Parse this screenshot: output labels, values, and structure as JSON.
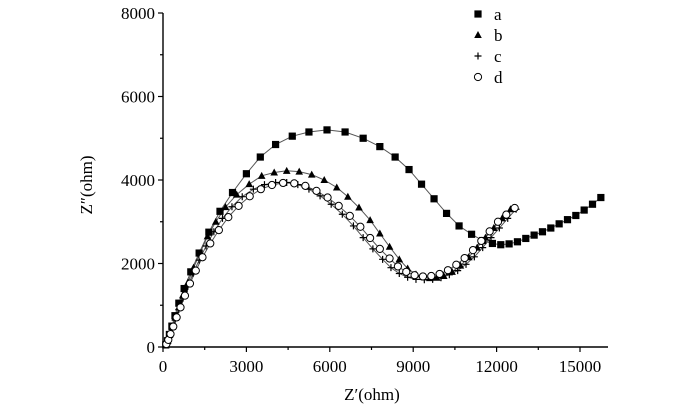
{
  "chart_data": {
    "type": "scatter",
    "title": "",
    "xlabel": "Z′(ohm)",
    "ylabel": "Z″(ohm)",
    "xlim": [
      0,
      17000
    ],
    "ylim": [
      0,
      8000
    ],
    "xticks": [
      0,
      3000,
      6000,
      9000,
      12000,
      15000
    ],
    "yticks": [
      0,
      2000,
      4000,
      6000,
      8000
    ],
    "legend": "top-right",
    "grid": false,
    "series": [
      {
        "name": "a",
        "marker": "square",
        "color": "#000000",
        "x": [
          100,
          160,
          230,
          320,
          430,
          570,
          760,
          1000,
          1300,
          1650,
          2050,
          2500,
          3000,
          3500,
          4050,
          4650,
          5250,
          5900,
          6550,
          7200,
          7800,
          8350,
          8850,
          9300,
          9750,
          10200,
          10650,
          11100,
          11500,
          11850,
          12150,
          12450,
          12750,
          13050,
          13350,
          13650,
          13950,
          14250,
          14550,
          14850,
          15150,
          15450,
          15750
        ],
        "y": [
          50,
          150,
          300,
          500,
          750,
          1050,
          1400,
          1800,
          2250,
          2750,
          3250,
          3700,
          4150,
          4550,
          4850,
          5050,
          5150,
          5200,
          5150,
          5000,
          4800,
          4550,
          4250,
          3900,
          3550,
          3200,
          2900,
          2700,
          2550,
          2480,
          2450,
          2470,
          2520,
          2600,
          2680,
          2760,
          2850,
          2950,
          3050,
          3150,
          3280,
          3420,
          3580
        ]
      },
      {
        "name": "b",
        "marker": "triangle",
        "color": "#000000",
        "x": [
          110,
          170,
          240,
          330,
          440,
          570,
          720,
          900,
          1100,
          1330,
          1600,
          1900,
          2250,
          2650,
          3100,
          3550,
          4000,
          4450,
          4900,
          5350,
          5800,
          6250,
          6650,
          7050,
          7450,
          7800,
          8150,
          8500,
          8800,
          9100,
          9350,
          9600,
          9850,
          10100,
          10400,
          10700,
          11000,
          11300,
          11600,
          11900,
          12200,
          12500
        ],
        "y": [
          60,
          150,
          300,
          480,
          700,
          950,
          1250,
          1550,
          1900,
          2250,
          2650,
          3000,
          3350,
          3650,
          3900,
          4100,
          4180,
          4220,
          4200,
          4130,
          4000,
          3820,
          3600,
          3340,
          3040,
          2720,
          2400,
          2100,
          1880,
          1740,
          1680,
          1650,
          1660,
          1700,
          1800,
          1950,
          2150,
          2380,
          2620,
          2850,
          3080,
          3300
        ]
      },
      {
        "name": "c",
        "marker": "plus",
        "color": "#000000",
        "x": [
          110,
          170,
          240,
          330,
          440,
          570,
          720,
          890,
          1080,
          1300,
          1550,
          1830,
          2140,
          2480,
          2850,
          3250,
          3650,
          4050,
          4450,
          4850,
          5250,
          5650,
          6050,
          6450,
          6850,
          7200,
          7550,
          7900,
          8200,
          8500,
          8800,
          9100,
          9400,
          9700,
          10000,
          10300,
          10600,
          10900,
          11200,
          11500,
          11800,
          12100,
          12400,
          12700
        ],
        "y": [
          60,
          150,
          290,
          460,
          670,
          900,
          1170,
          1450,
          1760,
          2080,
          2420,
          2760,
          3080,
          3360,
          3600,
          3780,
          3890,
          3940,
          3940,
          3890,
          3780,
          3620,
          3420,
          3180,
          2900,
          2620,
          2350,
          2100,
          1900,
          1760,
          1670,
          1620,
          1610,
          1620,
          1660,
          1730,
          1830,
          1980,
          2160,
          2380,
          2620,
          2850,
          3080,
          3300
        ]
      },
      {
        "name": "d",
        "marker": "circle",
        "color": "#000000",
        "x": [
          120,
          190,
          270,
          370,
          490,
          630,
          790,
          970,
          1180,
          1420,
          1700,
          2010,
          2350,
          2720,
          3120,
          3520,
          3920,
          4320,
          4720,
          5120,
          5520,
          5920,
          6320,
          6720,
          7100,
          7450,
          7800,
          8150,
          8450,
          8750,
          9050,
          9350,
          9650,
          9950,
          10250,
          10550,
          10850,
          11150,
          11450,
          11750,
          12050,
          12350,
          12650
        ],
        "y": [
          70,
          170,
          310,
          490,
          710,
          950,
          1230,
          1520,
          1830,
          2150,
          2480,
          2800,
          3110,
          3380,
          3610,
          3780,
          3880,
          3930,
          3920,
          3860,
          3740,
          3580,
          3380,
          3140,
          2880,
          2610,
          2350,
          2120,
          1930,
          1800,
          1720,
          1690,
          1700,
          1750,
          1840,
          1970,
          2130,
          2320,
          2540,
          2770,
          3000,
          3170,
          3330
        ]
      }
    ]
  }
}
